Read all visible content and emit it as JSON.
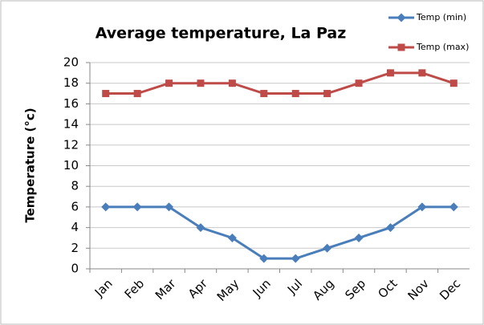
{
  "chart_data": {
    "type": "line",
    "title": "Average temperature, La Paz",
    "y_label": "Temperature (°c)",
    "categories": [
      "Jan",
      "Feb",
      "Mar",
      "Apr",
      "May",
      "Jun",
      "Jul",
      "Aug",
      "Sep",
      "Oct",
      "Nov",
      "Dec"
    ],
    "series": [
      {
        "name": "Temp (min)",
        "color": "#4a7ebb",
        "marker": "diamond",
        "values": [
          6,
          6,
          6,
          4,
          3,
          1,
          1,
          2,
          3,
          4,
          6,
          6
        ]
      },
      {
        "name": "Temp (max)",
        "color": "#be4b48",
        "marker": "square",
        "values": [
          17,
          17,
          18,
          18,
          18,
          17,
          17,
          17,
          18,
          19,
          19,
          18
        ]
      }
    ],
    "ylim": [
      0,
      20
    ],
    "yticks": [
      0,
      2,
      4,
      6,
      8,
      10,
      12,
      14,
      16,
      18,
      20
    ],
    "grid": true,
    "legend": "top-right"
  }
}
